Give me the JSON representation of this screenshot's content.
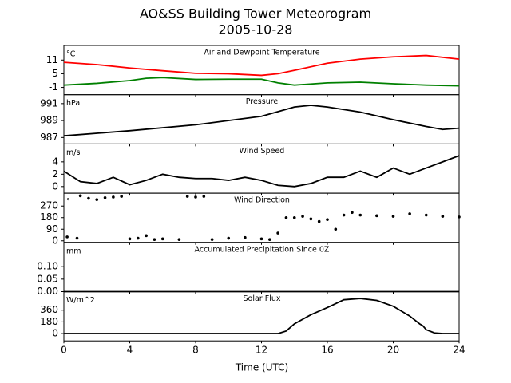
{
  "title": "AO&SS Building Tower Meteorogram",
  "date": "2005-10-28",
  "x_axis": {
    "label": "Time (UTC)",
    "xlim": [
      0,
      24
    ],
    "xticks": [
      0,
      4,
      8,
      12,
      16,
      20,
      24
    ]
  },
  "chart_data": [
    {
      "type": "line",
      "title": "Air and Dewpoint Temperature",
      "unit": "°C",
      "ylim": [
        -4.2,
        17.4
      ],
      "yticks": [
        -1,
        5,
        11
      ],
      "series": [
        {
          "color": "#ff0000",
          "x": [
            0,
            2,
            4,
            6,
            8,
            10,
            12,
            13,
            14,
            16,
            18,
            20,
            22,
            24
          ],
          "values": [
            10,
            9,
            7.5,
            6.3,
            5.2,
            5,
            4.3,
            5,
            6.5,
            9.6,
            11.4,
            12.4,
            13,
            11.4
          ]
        },
        {
          "color": "#008000",
          "x": [
            0,
            2,
            4,
            5,
            6,
            8,
            10,
            12,
            13,
            14,
            16,
            18,
            20,
            22,
            24
          ],
          "values": [
            0,
            0.8,
            2,
            3,
            3.3,
            2.5,
            2.6,
            2.6,
            1,
            0,
            1,
            1.3,
            0.6,
            0,
            -0.3
          ]
        }
      ]
    },
    {
      "type": "line",
      "title": "Pressure",
      "unit": "hPa",
      "ylim": [
        986.24,
        992.05
      ],
      "yticks": [
        987,
        989,
        991
      ],
      "series": [
        {
          "color": "#000000",
          "x": [
            0,
            4,
            8,
            12,
            14,
            15,
            16,
            18,
            20,
            22,
            23,
            24
          ],
          "values": [
            987.2,
            987.8,
            988.5,
            989.5,
            990.6,
            990.8,
            990.6,
            990,
            989.1,
            988.3,
            987.95,
            988.1
          ]
        }
      ]
    },
    {
      "type": "line",
      "title": "Wind Speed",
      "unit": "m/s",
      "ylim": [
        -1.07,
        6.9
      ],
      "yticks": [
        0,
        2,
        4
      ],
      "series": [
        {
          "color": "#000000",
          "x": [
            0,
            1,
            2,
            3,
            4,
            5,
            6,
            7,
            8,
            9,
            10,
            11,
            12,
            13,
            14,
            15,
            16,
            17,
            18,
            19,
            20,
            21,
            22,
            23,
            24
          ],
          "values": [
            2.5,
            0.8,
            0.5,
            1.5,
            0.3,
            1,
            2,
            1.5,
            1.3,
            1.3,
            1,
            1.5,
            1,
            0.2,
            0,
            0.5,
            1.5,
            1.5,
            2.5,
            1.5,
            3,
            2,
            3,
            4,
            5
          ]
        }
      ]
    },
    {
      "type": "scatter",
      "title": "Wind Direction",
      "unit": "°",
      "ylim": [
        -12.6,
        370
      ],
      "yticks": [
        0,
        90,
        180,
        270
      ],
      "series": [
        {
          "color": "#000000",
          "x": [
            0.2,
            0.8,
            1,
            1.5,
            2,
            2.5,
            3,
            3.5,
            4,
            4.5,
            5,
            5.5,
            6,
            7,
            7.5,
            8,
            8.5,
            9,
            10,
            11,
            12,
            12.5,
            13,
            13.5,
            14,
            14.5,
            15,
            15.5,
            16,
            16.5,
            17,
            17.5,
            18,
            19,
            20,
            21,
            22,
            23,
            24
          ],
          "values": [
            30,
            20,
            350,
            330,
            320,
            335,
            340,
            345,
            15,
            20,
            40,
            10,
            15,
            10,
            345,
            340,
            345,
            10,
            20,
            25,
            15,
            10,
            60,
            180,
            180,
            190,
            170,
            150,
            165,
            90,
            200,
            220,
            200,
            195,
            190,
            210,
            200,
            190,
            185
          ]
        }
      ]
    },
    {
      "type": "line",
      "title": "Accumulated Precipitation Since 0Z",
      "unit": "mm",
      "ylim": [
        0,
        0.197
      ],
      "yticks": [
        {
          "value": 0,
          "label": "0.00"
        },
        {
          "value": 0.05,
          "label": "0.05"
        },
        {
          "value": 0.1,
          "label": "0.10"
        }
      ],
      "series": [
        {
          "color": "#000000",
          "x": [
            0,
            4,
            8,
            12,
            16,
            20,
            24
          ],
          "values": [
            0,
            0,
            0,
            0,
            0,
            0,
            0
          ]
        }
      ]
    },
    {
      "type": "line",
      "title": "Solar Flux",
      "unit": "W/m^2",
      "ylim": [
        -112,
        645
      ],
      "yticks": [
        0,
        180,
        360
      ],
      "series": [
        {
          "color": "#000000",
          "x": [
            0,
            13,
            13.5,
            14,
            15,
            16,
            17,
            18,
            19,
            20,
            21,
            21.6,
            21.8,
            22,
            22.5,
            23,
            24
          ],
          "values": [
            0,
            0,
            40,
            150,
            290,
            400,
            520,
            540,
            510,
            420,
            270,
            150,
            120,
            60,
            10,
            0,
            0
          ]
        }
      ]
    }
  ]
}
